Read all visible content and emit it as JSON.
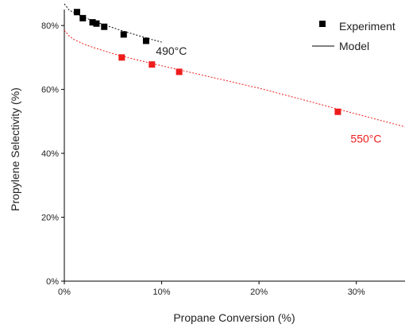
{
  "chart_data": {
    "type": "scatter",
    "xlabel": "Propane Conversion (%)",
    "ylabel": "Propylene Selectivity (%)",
    "xlim": [
      0,
      35
    ],
    "ylim": [
      0,
      85
    ],
    "x_ticks": [
      0,
      10,
      20,
      30
    ],
    "x_tick_labels": [
      "0%",
      "10%",
      "20%",
      "30%"
    ],
    "y_ticks": [
      0,
      20,
      40,
      60,
      80
    ],
    "y_tick_labels": [
      "0%",
      "20%",
      "40%",
      "60%",
      "80%"
    ],
    "grid": false,
    "legend": {
      "placement": "top-right",
      "entries": [
        {
          "label": "Experiment",
          "marker": "square"
        },
        {
          "label": "Model",
          "marker": "line"
        }
      ]
    },
    "series": [
      {
        "name": "490°C",
        "color": "#000000",
        "experiment": {
          "x": [
            1.3,
            1.9,
            2.9,
            3.3,
            4.1,
            6.1,
            8.4
          ],
          "y": [
            84.2,
            82.3,
            81.0,
            80.6,
            79.6,
            77.2,
            75.2
          ]
        },
        "model": {
          "x": [
            0,
            0.5,
            1,
            2,
            3,
            4,
            5,
            6,
            7,
            8,
            9,
            10
          ],
          "y": [
            86.8,
            84.8,
            84.0,
            82.6,
            81.4,
            80.3,
            79.3,
            78.3,
            77.4,
            76.5,
            75.6,
            74.8
          ]
        }
      },
      {
        "name": "550°C",
        "color": "#ee1c1c",
        "experiment": {
          "x": [
            5.9,
            9.0,
            11.8,
            28.1
          ],
          "y": [
            70.0,
            67.8,
            65.5,
            53.0
          ]
        },
        "model": {
          "x": [
            0,
            0.5,
            1,
            2,
            3,
            5,
            7,
            10,
            15,
            20,
            25,
            30,
            35
          ],
          "y": [
            78.5,
            76.7,
            75.6,
            74.2,
            73.1,
            71.2,
            69.6,
            67.4,
            63.9,
            60.4,
            56.4,
            52.3,
            48.3
          ]
        }
      }
    ],
    "annotations": [
      {
        "text": "490°C",
        "x": 11.0,
        "y": 70.8,
        "color": "#222222"
      },
      {
        "text": "550°C",
        "x": 31.0,
        "y": 43.4,
        "color": "#ee1c1c"
      }
    ]
  }
}
